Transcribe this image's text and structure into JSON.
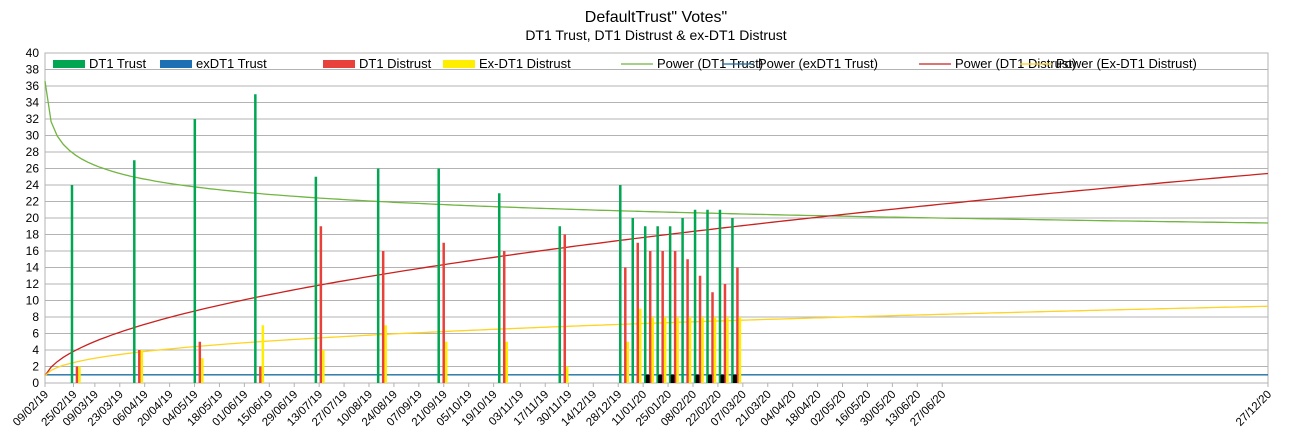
{
  "chart_data": {
    "type": "bar",
    "title": "DefaultTrust\" Votes\"",
    "subtitle": "DT1 Trust, DT1 Distrust & ex-DT1 Distrust",
    "xlabel": "",
    "ylabel": "",
    "ylim": [
      0,
      40
    ],
    "ytick_step": 2,
    "grid": "horizontal",
    "legend_position": "top",
    "x_axis": {
      "start": "2019-02-09",
      "end": "2020-12-27",
      "tick_labels": [
        "09/02/19",
        "25/02/19",
        "09/03/19",
        "23/03/19",
        "06/04/19",
        "20/04/19",
        "04/05/19",
        "18/05/19",
        "01/06/19",
        "15/06/19",
        "29/06/19",
        "13/07/19",
        "27/07/19",
        "10/08/19",
        "24/08/19",
        "07/09/19",
        "21/09/19",
        "05/10/19",
        "19/10/19",
        "03/11/19",
        "17/11/19",
        "30/11/19",
        "14/12/19",
        "28/12/19",
        "11/01/20",
        "25/01/20",
        "08/02/20",
        "22/02/20",
        "07/03/20",
        "21/03/20",
        "04/04/20",
        "18/04/20",
        "02/05/20",
        "16/05/20",
        "30/05/20",
        "13/06/20",
        "27/06/20",
        "27/12/20"
      ]
    },
    "dates": [
      "2019-02-25",
      "2019-04-01",
      "2019-05-05",
      "2019-06-08",
      "2019-07-12",
      "2019-08-16",
      "2019-09-19",
      "2019-10-23",
      "2019-11-26",
      "2019-12-30",
      "2020-01-06",
      "2020-01-13",
      "2020-01-20",
      "2020-01-27",
      "2020-02-03",
      "2020-02-10",
      "2020-02-17",
      "2020-02-24",
      "2020-03-02"
    ],
    "series": [
      {
        "name": "DT1 Trust",
        "kind": "bar",
        "color": "#00a651",
        "values": [
          24,
          27,
          32,
          35,
          25,
          26,
          26,
          23,
          19,
          24,
          20,
          19,
          19,
          19,
          20,
          21,
          21,
          21,
          20
        ]
      },
      {
        "name": "exDT1 Trust",
        "kind": "bar",
        "color": "#1f6fb5",
        "values": [
          0,
          0,
          0,
          0,
          0,
          0,
          0,
          0,
          0,
          0,
          0,
          0,
          0,
          0,
          0,
          0,
          0,
          0,
          0
        ]
      },
      {
        "name": "DT1 Distrust",
        "kind": "bar",
        "color": "#e8413c",
        "values": [
          2,
          4,
          5,
          2,
          19,
          16,
          17,
          16,
          18,
          14,
          17,
          16,
          16,
          16,
          15,
          13,
          11,
          12,
          14
        ]
      },
      {
        "name": "Ex-DT1 Distrust",
        "kind": "bar",
        "color": "#ffee00",
        "values": [
          2,
          4,
          3,
          7,
          4,
          7,
          5,
          5,
          2,
          5,
          9,
          8,
          8,
          8,
          8,
          8,
          8,
          8,
          8
        ]
      },
      {
        "name": "Power (DT1 Trust)",
        "kind": "trend",
        "color": "#71b542",
        "start": 36.6,
        "end": 19.4,
        "exponent": -0.1
      },
      {
        "name": "Power (exDT1 Trust)",
        "kind": "trend",
        "color": "#1b6ea3",
        "start": 1.0,
        "end": 1.0,
        "exponent": 0
      },
      {
        "name": "Power (DT1 Distrust)",
        "kind": "trend",
        "color": "#c9211e",
        "start": 0.9,
        "end": 25.4,
        "exponent": 0.49
      },
      {
        "name": "Power (Ex-DT1 Distrust)",
        "kind": "trend",
        "color": "#ffd320",
        "start": 0.9,
        "end": 9.3,
        "exponent": 0.34
      }
    ],
    "black_markers": {
      "color": "#000000",
      "dates": [
        "2020-01-13",
        "2020-01-20",
        "2020-01-27",
        "2020-02-10",
        "2020-02-17",
        "2020-02-24",
        "2020-03-02"
      ],
      "value": 1
    }
  }
}
